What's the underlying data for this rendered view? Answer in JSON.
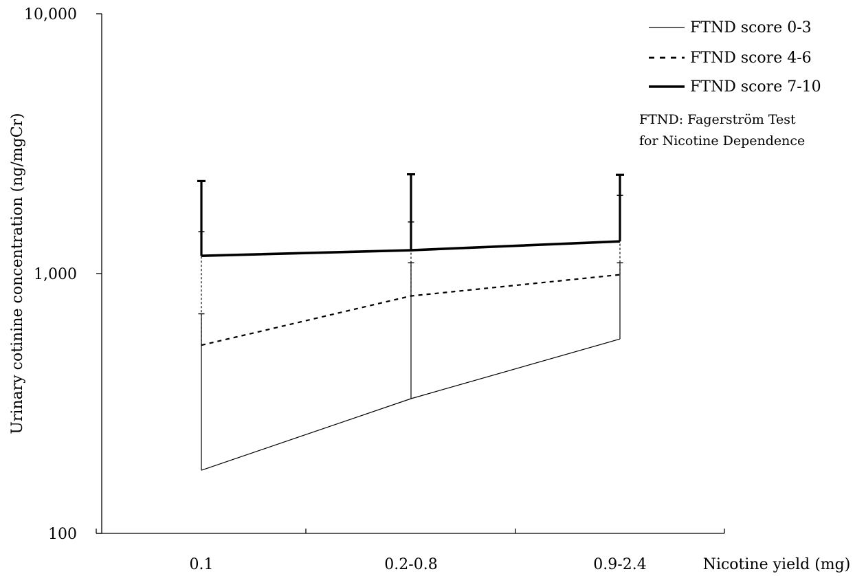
{
  "chart_data": {
    "type": "line",
    "categories": [
      "0.1",
      "0.2-0.8",
      "0.9-2.4"
    ],
    "xlabel": "Nicotine yield (mg)",
    "ylabel": "Urinary cotinine concentration (ng/mgCr)",
    "yscale": "log",
    "ylim": [
      100,
      10000
    ],
    "yticks": [
      {
        "value": 100,
        "label": "100"
      },
      {
        "value": 1000,
        "label": "1,000"
      },
      {
        "value": 10000,
        "label": "10,000"
      }
    ],
    "grid": false,
    "legend_position": "top-right",
    "series": [
      {
        "name": "FTND score 0-3",
        "style": "solid-thin",
        "values": [
          175,
          330,
          560
        ],
        "error_upper": [
          700,
          1100,
          1100
        ]
      },
      {
        "name": "FTND score 4-6",
        "style": "dashed",
        "values": [
          530,
          820,
          990
        ],
        "error_upper": [
          1450,
          1580,
          2000
        ]
      },
      {
        "name": "FTND score 7-10",
        "style": "solid-thick",
        "values": [
          1170,
          1230,
          1330
        ],
        "error_upper": [
          2270,
          2410,
          2400
        ]
      }
    ],
    "annotation_lines": [
      "FTND: Fagerström Test",
      "for Nicotine Dependence"
    ]
  }
}
